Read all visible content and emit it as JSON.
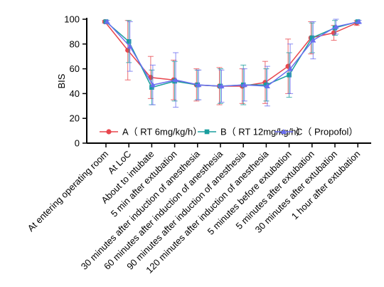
{
  "chart_data": {
    "type": "line",
    "ylabel": "BIS",
    "xlabel": "",
    "ylim": [
      0,
      100
    ],
    "yticks": [
      0,
      20,
      40,
      60,
      80,
      100
    ],
    "categories": [
      "At entering operating room",
      "At LoC",
      "About to intubate",
      "5 min after extubation",
      "30 minutes after induction of anesthesia",
      "60 minutes after induction of anesthesia",
      "90 minutes after induction of anesthesia",
      "120 minutes after induction of anesthesia",
      "5 minutes before extubation",
      "5 minutes after extubation",
      "30 minutes after extubation",
      "1 hour after extubation"
    ],
    "legend_position": "inside-lower",
    "series": [
      {
        "name": "A（ RT 6mg/kg/h）",
        "color": "#e8474e",
        "marker": "circle",
        "values": [
          98,
          75,
          53,
          51,
          47,
          46,
          46,
          49,
          62,
          85,
          89,
          97
        ],
        "err": [
          1,
          24,
          17,
          16,
          13,
          15,
          14,
          17,
          22,
          13,
          6,
          2
        ]
      },
      {
        "name": "B（ RT 12mg/kg/h）",
        "color": "#1a9e9e",
        "marker": "square",
        "values": [
          98,
          82,
          45,
          50,
          47,
          46,
          47,
          47,
          55,
          85,
          93,
          98
        ],
        "err": [
          1,
          17,
          14,
          16,
          12,
          14,
          16,
          13,
          18,
          12,
          6,
          1
        ]
      },
      {
        "name": "C（ Propofol）",
        "color": "#6a6ef0",
        "marker": "triangle",
        "values": [
          98,
          78,
          47,
          51,
          47,
          46,
          47,
          46,
          60,
          83,
          94,
          98
        ],
        "err": [
          1,
          20,
          16,
          22,
          12,
          13,
          13,
          16,
          20,
          15,
          6,
          1
        ]
      }
    ]
  }
}
